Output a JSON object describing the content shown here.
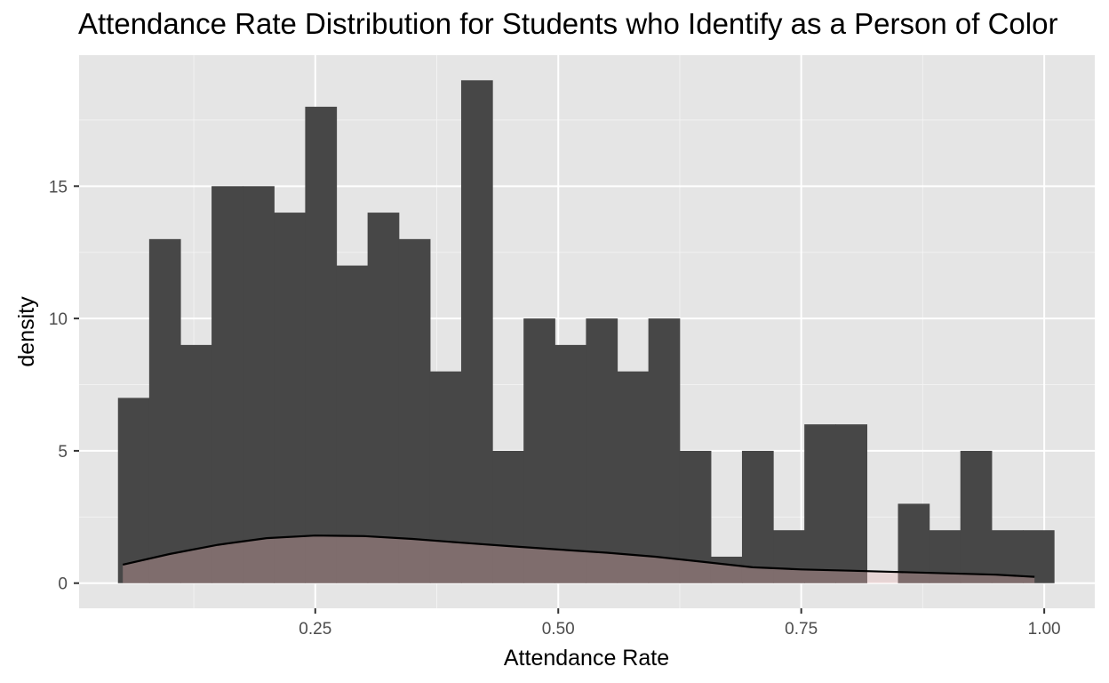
{
  "chart_data": {
    "type": "bar",
    "title": "Attendance Rate Distribution for Students who Identify as a Person of Color",
    "xlabel": "Attendance Rate",
    "ylabel": "density",
    "xlim": [
      0.007,
      1.052
    ],
    "ylim": [
      -0.95,
      19.95
    ],
    "x_ticks": [
      {
        "value": 0.25,
        "label": "0.25"
      },
      {
        "value": 0.5,
        "label": "0.50"
      },
      {
        "value": 0.75,
        "label": "0.75"
      },
      {
        "value": 1.0,
        "label": "1.00"
      }
    ],
    "y_ticks": [
      {
        "value": 0,
        "label": "0"
      },
      {
        "value": 5,
        "label": "5"
      },
      {
        "value": 10,
        "label": "10"
      },
      {
        "value": 15,
        "label": "15"
      }
    ],
    "grid": true,
    "histogram": {
      "bin_start": 0.047,
      "bin_width": 0.0321,
      "counts": [
        7,
        13,
        9,
        15,
        15,
        14,
        18,
        12,
        14,
        13,
        8,
        19,
        5,
        10,
        9,
        10,
        8,
        10,
        5,
        1,
        5,
        2,
        6,
        6,
        0,
        3,
        2,
        5,
        2,
        2
      ],
      "color": "#474747"
    },
    "density_curve": {
      "fill": "#e8b4b4",
      "line": "#000000",
      "x": [
        0.052,
        0.1,
        0.15,
        0.2,
        0.25,
        0.3,
        0.35,
        0.4,
        0.45,
        0.5,
        0.55,
        0.6,
        0.65,
        0.7,
        0.75,
        0.8,
        0.85,
        0.9,
        0.95,
        0.99
      ],
      "y": [
        0.7,
        1.1,
        1.45,
        1.7,
        1.8,
        1.78,
        1.67,
        1.53,
        1.4,
        1.27,
        1.15,
        1.0,
        0.8,
        0.6,
        0.52,
        0.47,
        0.42,
        0.37,
        0.32,
        0.24
      ]
    }
  }
}
